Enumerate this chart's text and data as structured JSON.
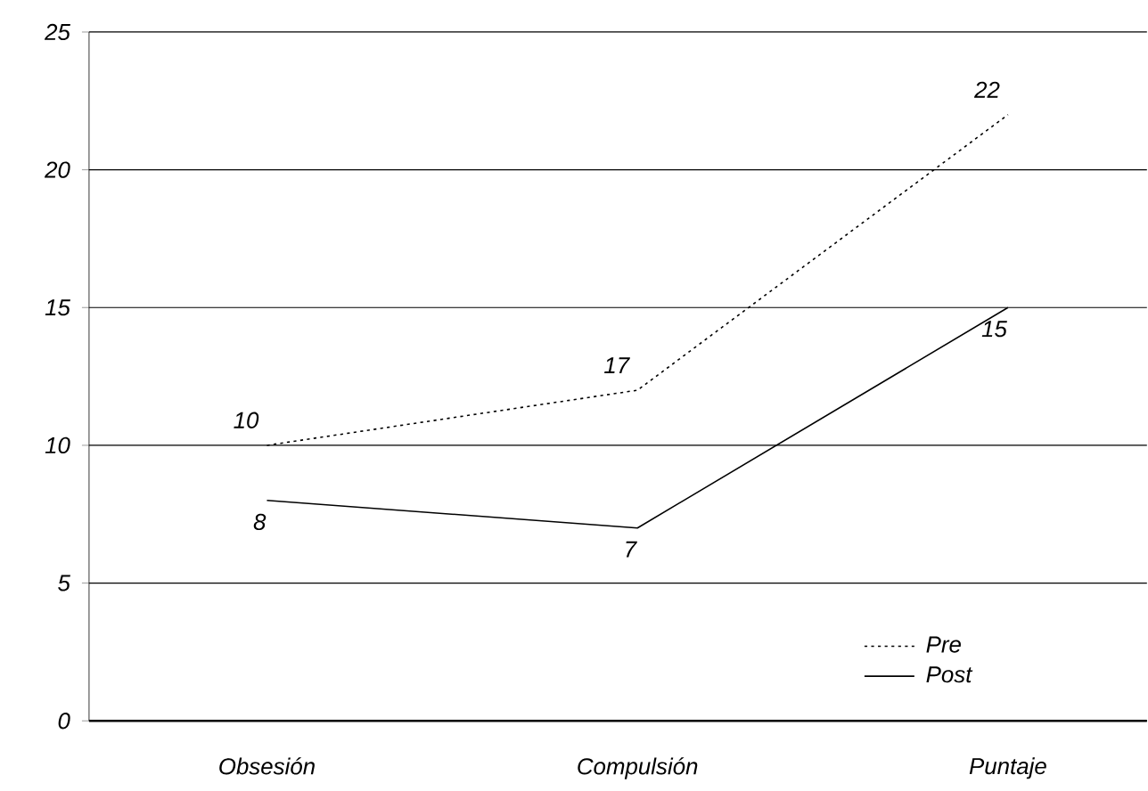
{
  "chart_data": {
    "type": "line",
    "categories": [
      "Obsesión",
      "Compulsión",
      "Puntaje"
    ],
    "series": [
      {
        "name": "Pre",
        "color": "#000000",
        "line_style": "dotted",
        "values": [
          10,
          12,
          22
        ],
        "value_labels": [
          "10",
          null,
          "22"
        ]
      },
      {
        "name": "Post",
        "color": "#000000",
        "line_style": "solid",
        "values": [
          8,
          7,
          15
        ],
        "value_labels": [
          "8",
          "7",
          "15"
        ]
      }
    ],
    "ylim": [
      0,
      25
    ],
    "yticks": [
      0,
      5,
      10,
      15,
      20,
      25
    ],
    "annotations": [
      {
        "text": "17",
        "x": "Compulsión",
        "y": 12
      }
    ],
    "grid": "y",
    "legend": "bottom right",
    "marker": "none"
  }
}
